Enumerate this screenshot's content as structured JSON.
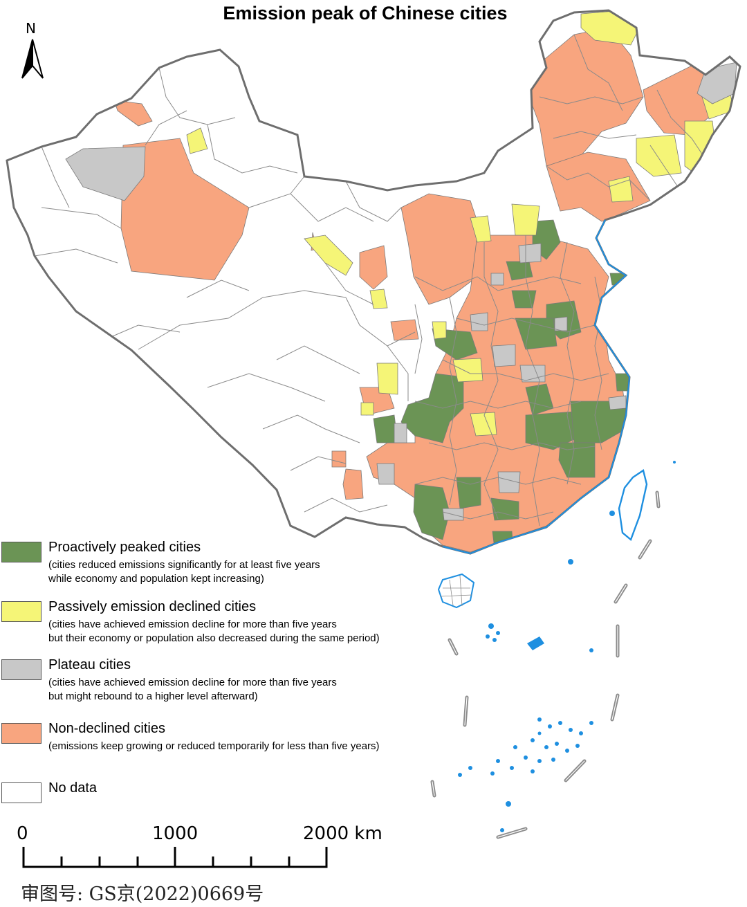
{
  "title": "Emission peak of Chinese cities",
  "north_label": "N",
  "legend": {
    "items": [
      {
        "key": "proactive",
        "label": "Proactively peaked cities",
        "desc": [
          "(cities reduced emissions significantly for at least five years",
          "while economy and population kept increasing)"
        ],
        "color": "#6b9455"
      },
      {
        "key": "passive",
        "label": "Passively emission declined cities",
        "desc": [
          "(cities have achieved emission decline for more than five years",
          "but their economy or population also decreased during the same period)"
        ],
        "color": "#f5f577"
      },
      {
        "key": "plateau",
        "label": "Plateau cities",
        "desc": [
          "(cities have achieved emission decline for more than five years",
          "but might rebound to a higher level afterward)"
        ],
        "color": "#c8c8c8"
      },
      {
        "key": "nondeclined",
        "label": "Non-declined cities",
        "desc": [
          "(emissions keep growing or reduced temporarily for less than five years)"
        ],
        "color": "#f8a57f"
      },
      {
        "key": "nodata",
        "label": "No data",
        "desc": [],
        "color": "#ffffff"
      }
    ]
  },
  "scale_bar": {
    "labels": [
      "0",
      "1000",
      "2000 km"
    ]
  },
  "approval_number": "审图号: GS京(2022)0669号",
  "colors": {
    "border": "#7a7a7a",
    "coast": "#1e8fe0",
    "dash": "#8c8c8c"
  }
}
